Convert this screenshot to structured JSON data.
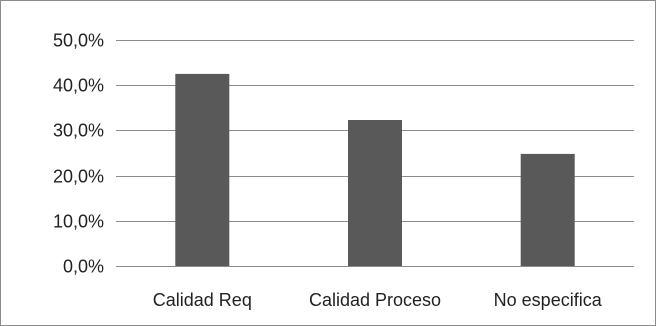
{
  "chart_data": {
    "type": "bar",
    "categories": [
      "Calidad Req",
      "Calidad Proceso",
      "No especifica"
    ],
    "values": [
      42.5,
      32.3,
      24.8
    ],
    "title": "",
    "xlabel": "",
    "ylabel": "",
    "ylim": [
      0,
      50
    ],
    "yticks": [
      "0,0%",
      "10,0%",
      "20,0%",
      "30,0%",
      "40,0%",
      "50,0%"
    ],
    "ytick_values": [
      0,
      10,
      20,
      30,
      40,
      50
    ],
    "grid": true,
    "legend": "none",
    "bar_color": "#595959",
    "grid_color": "#8c8c8c"
  }
}
